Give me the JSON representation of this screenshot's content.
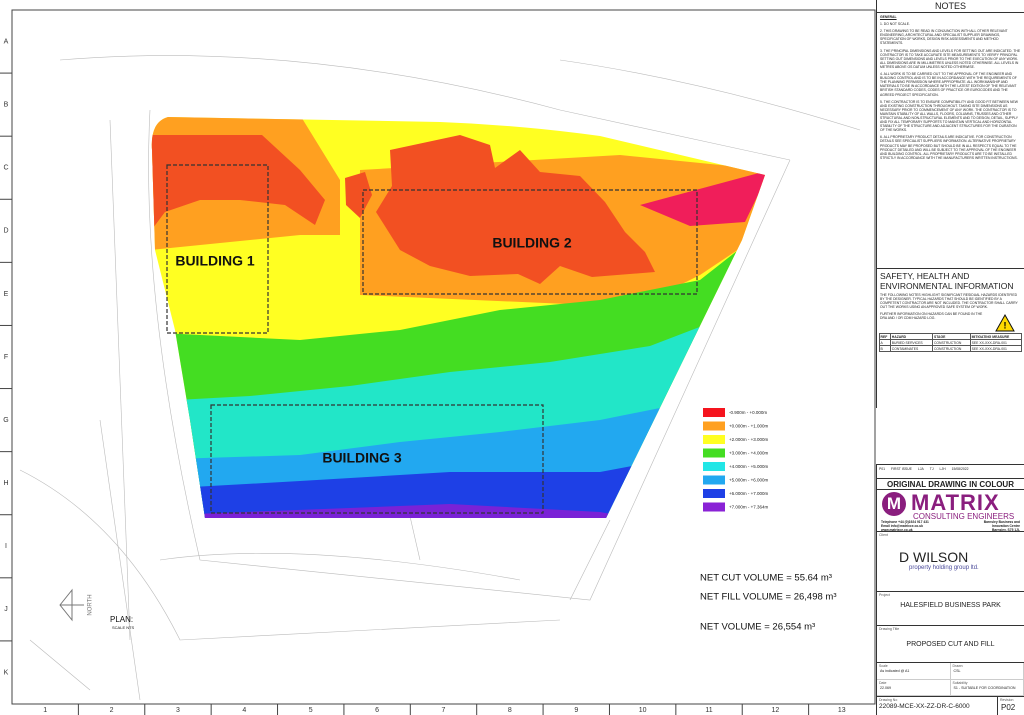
{
  "sheet": {
    "rows": [
      "A",
      "B",
      "C",
      "D",
      "E",
      "F",
      "G",
      "H",
      "I",
      "J",
      "K"
    ],
    "columns": [
      "1",
      "2",
      "3",
      "4",
      "5",
      "6",
      "7",
      "8",
      "9",
      "10",
      "11",
      "12",
      "13"
    ]
  },
  "drawing": {
    "buildings": [
      "BUILDING 1",
      "BUILDING 2",
      "BUILDING 3"
    ],
    "legend": [
      "-0.900m - +0.000m",
      "+0.000m - +1.000m",
      "+2.000m - +3.000m",
      "+3.000m - +4.000m",
      "+4.000m - +5.000m",
      "+5.000m - +6.000m",
      "+6.000m - +7.000m",
      "+7.000m - +7.364m"
    ],
    "volumes": [
      "NET CUT VOLUME = 55.64 m³",
      "NET FILL VOLUME = 26,498 m³",
      "NET VOLUME = 26,554 m³"
    ],
    "plan_label": "PLAN:",
    "scale": "SCALE NTS",
    "north": "NORTH"
  },
  "notes": {
    "title": "NOTES",
    "heading": "GENERAL",
    "items": [
      "1. DO NOT SCALE.",
      "2. THIS DRAWING TO BE READ IN CONJUNCTION WITH ALL OTHER RELEVANT ENGINEERING, ARCHITECTURAL AND SPECIALIST SUPPLIER DRAWINGS, SPECIFICATION OF WORKS, DESIGN RISK ASSESSMENTS AND METHOD STATEMENTS.",
      "3. THE PRINCIPAL DIMENSIONS AND LEVELS FOR SETTING OUT ARE INDICATED. THE CONTRACTOR IS TO TAKE ACCURATE SITE MEASUREMENTS TO VERIFY PRINCIPAL SETTING OUT DIMENSIONS AND LEVELS PRIOR TO THE EXECUTION OF ANY WORK. ALL DIMENSIONS ARE IN MILLIMETRES UNLESS NOTED OTHERWISE. ALL LEVELS IN METRES ABOVE OS DATUM UNLESS NOTED OTHERWISE.",
      "4. ALL WORK IS TO BE CARRIED OUT TO THE APPROVAL OF THE ENGINEER AND BUILDING CONTROL AND IS TO BE IN ACCORDANCE WITH THE REQUIREMENTS OF THE PLANNING PERMISSION WHERE APPROPRIATE. ALL WORKMANSHIP AND MATERIALS TO BE IN ACCORDANCE WITH THE LATEST EDITION OF THE RELEVANT BRITISH STANDARD CODES, CODES OF PRACTICE OR EUROCODES AND THE AGREED PROJECT SPECIFICATION.",
      "5. THE CONTRACTOR IS TO ENSURE COMPATIBILITY AND GOOD FIT BETWEEN NEW AND EXISTING CONSTRUCTION THROUGHOUT. TAKING SITE DIMENSIONS AS NECESSARY PRIOR TO COMMENCEMENT OF ANY WORK. THE CONTRACTOR IS TO MAINTAIN STABILITY OF ALL WALLS, FLOORS, COLUMNS, TRUSSES AND OTHER STRUCTURAL AND NON-STRUCTURAL ELEMENTS AND TO DESIGN, DETAIL, SUPPLY AND FIX ALL TEMPORARY SUPPORTS TO MAINTAIN VERTICAL AND HORIZONTAL STABILITY OF THE STRUCTURE AND ADJACENT STRUCTURES FOR THE DURATION OF THE WORKS.",
      "6. ALL PROPRIETARY PRODUCT DETAILS ARE INDICATIVE. FOR CONSTRUCTION DETAILS SEE SPECIALIST SUPPLIERS INFORMATION. ALTERNATIVE PROPRIETARY PRODUCTS MAY BE PROPOSED BUT SHOULD BE IN ALL RESPECTS EQUAL TO THE PRODUCT DETAILED AND WILL BE SUBJECT TO THE APPROVAL OF THE ENGINEER AND BUILDING CONTROL. ALL PROPRIETARY PRODUCTS ARE TO BE INSTALLED STRICTLY IN ACCORDANCE WITH THE MANUFACTURERS WRITTEN INSTRUCTIONS."
    ]
  },
  "safety": {
    "title": "SAFETY, HEALTH AND ENVIRONMENTAL INFORMATION",
    "text": "THE FOLLOWING NOTES HIGHLIGHT SIGNIFICANT RESIDUAL HAZARDS IDENTIFIED BY THE DESIGNER. TYPICAL HAZARDS THAT SHOULD BE IDENTIFIED BY A COMPETENT CONTRACTOR ARE NOT INCLUDED. THE CONTRACTOR SHALL CARRY OUT THE WORKS USING AN APPROVED SAFE SYSTEM OF WORK.",
    "further": "FURTHER INFORMATION ON HAZARDS CAN BE FOUND IN THE DRA AND / OR CDM HAZARD LOG.",
    "header": [
      "REF",
      "HAZARD",
      "STAGE",
      "MITIGATING MEASURE"
    ],
    "rows": [
      [
        "A",
        "BURIED SERVICES",
        "CONSTRUCTION",
        "SEE XX-XXX-DRA-001"
      ],
      [
        "B",
        "CONTAMINATES",
        "CONSTRUCTION",
        "SEE XX-XXX-DRA-001"
      ]
    ]
  },
  "revision_row": [
    "P01",
    "FIRST ISSUE",
    "LJA",
    "TJ",
    "LJH",
    "15/08/2022"
  ],
  "original": "ORIGINAL DRAWING IN COLOUR",
  "company": {
    "initial": "M",
    "name": "MATRIX",
    "sub": "CONSULTING ENGINEERS",
    "contact": [
      "Telephone +44 (0)1924 917 431",
      "Email info@matrixce.co.uk",
      "www.matrixce.co.uk"
    ],
    "address": [
      "Barnsley Business and",
      "Innovation Centre",
      "Barnsley, S75 1JL"
    ]
  },
  "client": {
    "label": "Client",
    "name": "D WILSON",
    "sub": "property holding group ltd."
  },
  "project": {
    "label": "Project",
    "name": "HALESFIELD BUSINESS PARK"
  },
  "title": {
    "label": "Drawing Title",
    "name": "PROPOSED CUT AND FILL"
  },
  "details": [
    {
      "label": "Scale",
      "value": "As indicated @ A1"
    },
    {
      "label": "Drawn",
      "value": "CSL"
    },
    {
      "label": "Date",
      "value": "22.069"
    },
    {
      "label": "Suitability",
      "value": "S1 - SUITABLE FOR COORDINATION"
    }
  ],
  "drawing_no": {
    "label": "Drawing No",
    "value": "22089-MCE-XX-ZZ-DR-C-6000"
  },
  "revision": {
    "label": "Revision",
    "value": "P02"
  }
}
